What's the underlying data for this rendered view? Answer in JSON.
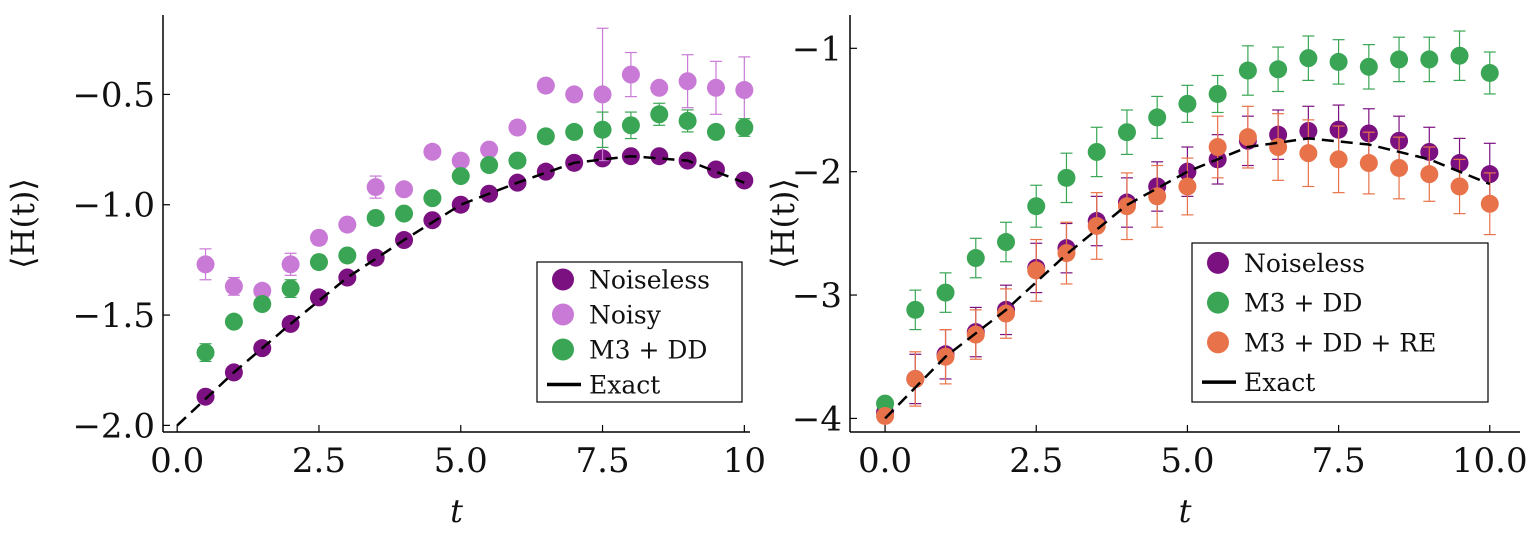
{
  "chart_data": [
    {
      "type": "scatter",
      "xlabel": "t",
      "ylabel": "⟨H(t)⟩",
      "xlim": [
        -0.25,
        10.1
      ],
      "ylim": [
        -2.03,
        -0.14
      ],
      "xticks": [
        0,
        2.5,
        5,
        7.5,
        10
      ],
      "xtick_labels": [
        "0.0",
        "2.5",
        "5.0",
        "7.5",
        "10"
      ],
      "yticks": [
        -2.0,
        -1.5,
        -1.0,
        -0.5
      ],
      "ytick_labels": [
        "−2.0",
        "−1.5",
        "−1.0",
        "−0.5"
      ],
      "grid": false,
      "legend_position": "bottom-right",
      "x": [
        0.5,
        1,
        1.5,
        2,
        2.5,
        3,
        3.5,
        4,
        4.5,
        5,
        5.5,
        6,
        6.5,
        7,
        7.5,
        8,
        8.5,
        9,
        9.5,
        10
      ],
      "series": [
        {
          "name": "Noiseless",
          "color": "#7b1180",
          "values": [
            -1.87,
            -1.76,
            -1.65,
            -1.54,
            -1.42,
            -1.33,
            -1.24,
            -1.16,
            -1.07,
            -1.0,
            -0.95,
            -0.9,
            -0.85,
            -0.81,
            -0.79,
            -0.78,
            -0.78,
            -0.8,
            -0.84,
            -0.89
          ],
          "errors": [
            0,
            0,
            0,
            0,
            0,
            0,
            0,
            0,
            0,
            0,
            0,
            0,
            0,
            0,
            0,
            0,
            0,
            0,
            0,
            0
          ]
        },
        {
          "name": "Noisy",
          "color": "#c97ad6",
          "values": [
            -1.27,
            -1.37,
            -1.39,
            -1.27,
            -1.15,
            -1.09,
            -0.92,
            -0.93,
            -0.76,
            -0.8,
            -0.75,
            -0.65,
            -0.46,
            -0.5,
            -0.5,
            -0.41,
            -0.47,
            -0.44,
            -0.47,
            -0.48
          ],
          "errors": [
            0.07,
            0.04,
            0.02,
            0.05,
            0.03,
            0.02,
            0.05,
            0.02,
            0.02,
            0.02,
            0.02,
            0.03,
            0.02,
            0.02,
            0.3,
            0.1,
            0.02,
            0.12,
            0.12,
            0.15
          ]
        },
        {
          "name": "M3 + DD",
          "color": "#3aa655",
          "values": [
            -1.67,
            -1.53,
            -1.45,
            -1.38,
            -1.26,
            -1.23,
            -1.06,
            -1.04,
            -0.97,
            -0.87,
            -0.82,
            -0.8,
            -0.69,
            -0.67,
            -0.66,
            -0.64,
            -0.59,
            -0.62,
            -0.67,
            -0.65
          ],
          "errors": [
            0.04,
            0.02,
            0.02,
            0.04,
            0.03,
            0.02,
            0.03,
            0.02,
            0.02,
            0.02,
            0.02,
            0.02,
            0.02,
            0.02,
            0.08,
            0.06,
            0.05,
            0.05,
            0.02,
            0.04
          ]
        }
      ],
      "exact": {
        "name": "Exact",
        "color": "#000000",
        "x": [
          0,
          1,
          2,
          3,
          4,
          5,
          6,
          7,
          8,
          9,
          10
        ],
        "values": [
          -2.0,
          -1.76,
          -1.54,
          -1.33,
          -1.16,
          -1.0,
          -0.9,
          -0.81,
          -0.78,
          -0.8,
          -0.9
        ]
      }
    },
    {
      "type": "scatter",
      "xlabel": "t",
      "ylabel": "⟨H(t)⟩",
      "xlim": [
        -0.58,
        10.5
      ],
      "ylim": [
        -4.11,
        -0.73
      ],
      "xticks": [
        0,
        2.5,
        5,
        7.5,
        10
      ],
      "xtick_labels": [
        "0.0",
        "2.5",
        "5.0",
        "7.5",
        "10.0"
      ],
      "yticks": [
        -4,
        -3,
        -2,
        -1
      ],
      "ytick_labels": [
        "−4",
        "−3",
        "−2",
        "−1"
      ],
      "grid": false,
      "legend_position": "bottom-right",
      "x": [
        0,
        0.5,
        1,
        1.5,
        2,
        2.5,
        3,
        3.5,
        4,
        4.5,
        5,
        5.5,
        6,
        6.5,
        7,
        7.5,
        8,
        8.5,
        9,
        9.5,
        10
      ],
      "series": [
        {
          "name": "Noiseless",
          "color": "#7b1180",
          "values": [
            -3.95,
            -3.68,
            -3.48,
            -3.3,
            -3.12,
            -2.78,
            -2.62,
            -2.4,
            -2.25,
            -2.12,
            -2.0,
            -1.9,
            -1.75,
            -1.7,
            -1.67,
            -1.66,
            -1.69,
            -1.75,
            -1.84,
            -1.93,
            -2.02
          ],
          "errors": [
            0,
            0.2,
            0.2,
            0.2,
            0.2,
            0.2,
            0.2,
            0.2,
            0.2,
            0.2,
            0.2,
            0.2,
            0.2,
            0.2,
            0.2,
            0.2,
            0.2,
            0.2,
            0.2,
            0.2,
            0.25
          ]
        },
        {
          "name": "M3 + DD",
          "color": "#3aa655",
          "values": [
            -3.88,
            -3.12,
            -2.98,
            -2.7,
            -2.57,
            -2.28,
            -2.05,
            -1.84,
            -1.68,
            -1.56,
            -1.45,
            -1.37,
            -1.18,
            -1.17,
            -1.08,
            -1.11,
            -1.15,
            -1.09,
            -1.09,
            -1.06,
            -1.2
          ],
          "errors": [
            0.03,
            0.16,
            0.16,
            0.16,
            0.16,
            0.17,
            0.2,
            0.2,
            0.18,
            0.17,
            0.15,
            0.15,
            0.2,
            0.18,
            0.18,
            0.18,
            0.18,
            0.18,
            0.18,
            0.2,
            0.17
          ]
        },
        {
          "name": "M3 + DD + RE",
          "color": "#e8734a",
          "values": [
            -3.98,
            -3.68,
            -3.5,
            -3.32,
            -3.15,
            -2.8,
            -2.66,
            -2.44,
            -2.28,
            -2.2,
            -2.12,
            -1.8,
            -1.72,
            -1.8,
            -1.85,
            -1.9,
            -1.93,
            -1.97,
            -2.02,
            -2.12,
            -2.26
          ],
          "errors": [
            0.03,
            0.22,
            0.22,
            0.2,
            0.2,
            0.25,
            0.25,
            0.27,
            0.27,
            0.25,
            0.23,
            0.25,
            0.25,
            0.27,
            0.27,
            0.27,
            0.25,
            0.25,
            0.22,
            0.22,
            0.25
          ]
        }
      ],
      "exact": {
        "name": "Exact",
        "color": "#000000",
        "x": [
          0,
          1,
          2,
          3,
          4,
          5,
          6,
          7,
          8,
          9,
          10
        ],
        "values": [
          -4.0,
          -3.5,
          -3.12,
          -2.67,
          -2.27,
          -2.0,
          -1.8,
          -1.73,
          -1.78,
          -1.9,
          -2.1
        ]
      }
    }
  ]
}
